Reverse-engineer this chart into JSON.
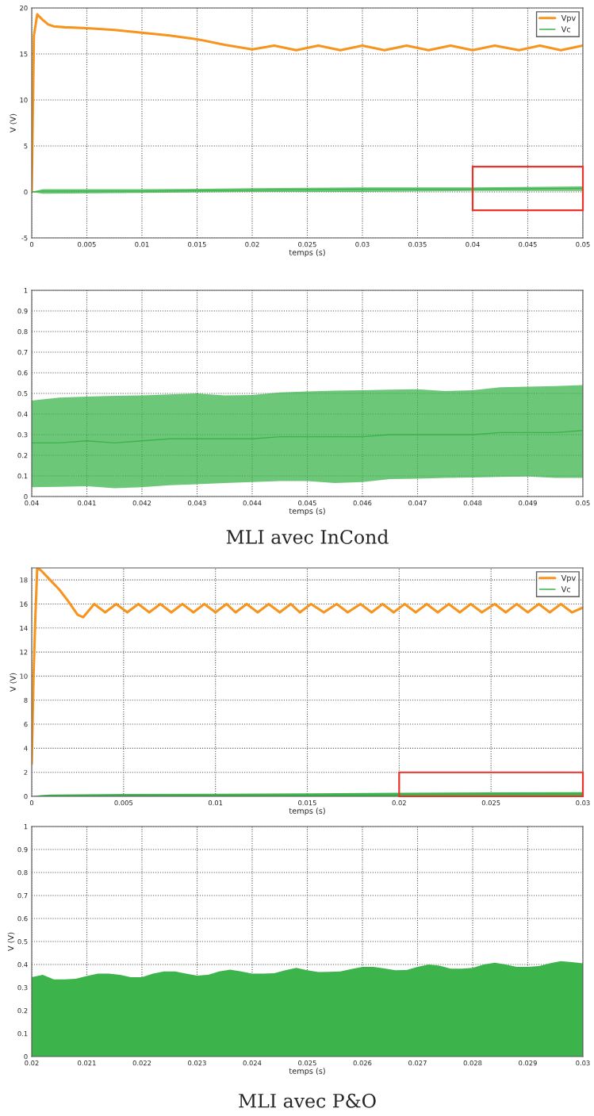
{
  "chart_data": [
    {
      "type": "line",
      "xlabel": "temps (s)",
      "ylabel": "V (V)",
      "xlim": [
        0,
        0.05
      ],
      "ylim": [
        -5,
        20
      ],
      "xticks": [
        0,
        0.005,
        0.01,
        0.015,
        0.02,
        0.025,
        0.03,
        0.035,
        0.04,
        0.045,
        0.05
      ],
      "yticks": [
        -5,
        0,
        5,
        10,
        15,
        20
      ],
      "grid": true,
      "legend": "top right",
      "line_style": "solid",
      "series": [
        {
          "name": "Vpv",
          "color": "#f7941d",
          "x": [
            0,
            0.0002,
            0.0005,
            0.001,
            0.0015,
            0.002,
            0.003,
            0.005,
            0.0075,
            0.01,
            0.0125,
            0.015,
            0.0175,
            0.02,
            0.022,
            0.024,
            0.026,
            0.028,
            0.03,
            0.032,
            0.034,
            0.036,
            0.038,
            0.04,
            0.042,
            0.0442,
            0.0461,
            0.048,
            0.05
          ],
          "values": [
            0,
            17,
            19.3,
            18.7,
            18.2,
            18.0,
            17.9,
            17.8,
            17.6,
            17.3,
            17.0,
            16.6,
            16.0,
            15.5,
            15.9,
            15.4,
            15.9,
            15.4,
            15.9,
            15.4,
            15.9,
            15.4,
            15.9,
            15.4,
            15.9,
            15.4,
            15.9,
            15.4,
            15.9
          ]
        },
        {
          "name": "Vc",
          "color": "#3cb44b",
          "x": [
            0,
            0.001,
            0.01,
            0.02,
            0.03,
            0.04,
            0.05
          ],
          "values": [
            0,
            0.1,
            0.1,
            0.2,
            0.3,
            0.3,
            0.4
          ],
          "lower": [
            0,
            -0.2,
            -0.1,
            0,
            0,
            0.1,
            0.1
          ],
          "upper": [
            0,
            0.3,
            0.3,
            0.4,
            0.5,
            0.5,
            0.6
          ]
        }
      ]
    },
    {
      "type": "line",
      "xlabel": "temps (s)",
      "xlim": [
        0.04,
        0.05
      ],
      "ylim": [
        0,
        1
      ],
      "xticks": [
        0.04,
        0.041,
        0.042,
        0.043,
        0.044,
        0.045,
        0.046,
        0.047,
        0.048,
        0.049,
        0.05
      ],
      "yticks": [
        0,
        0.1,
        0.2,
        0.3,
        0.4,
        0.5,
        0.6,
        0.7,
        0.8,
        0.9,
        1
      ],
      "grid": true,
      "annotations": [
        "MLI avec InCond"
      ],
      "series": [
        {
          "color": "#3cb44b",
          "x": [
            0.04,
            0.0405,
            0.041,
            0.0415,
            0.042,
            0.0425,
            0.043,
            0.0435,
            0.044,
            0.0445,
            0.045,
            0.0455,
            0.046,
            0.0465,
            0.047,
            0.0475,
            0.048,
            0.0485,
            0.049,
            0.0495,
            0.05
          ],
          "values": [
            0.26,
            0.26,
            0.27,
            0.26,
            0.27,
            0.28,
            0.28,
            0.28,
            0.28,
            0.29,
            0.29,
            0.29,
            0.29,
            0.3,
            0.3,
            0.3,
            0.3,
            0.31,
            0.31,
            0.31,
            0.32
          ],
          "lower": [
            0.045,
            0.047,
            0.05,
            0.04,
            0.045,
            0.055,
            0.06,
            0.065,
            0.07,
            0.075,
            0.075,
            0.065,
            0.07,
            0.085,
            0.087,
            0.09,
            0.092,
            0.095,
            0.097,
            0.09,
            0.09
          ],
          "upper": [
            0.465,
            0.48,
            0.485,
            0.488,
            0.49,
            0.495,
            0.5,
            0.49,
            0.492,
            0.505,
            0.51,
            0.513,
            0.515,
            0.518,
            0.52,
            0.512,
            0.515,
            0.53,
            0.533,
            0.536,
            0.54
          ]
        }
      ]
    },
    {
      "type": "line",
      "xlabel": "temps (s)",
      "ylabel": "V (V)",
      "xlim": [
        0,
        0.03
      ],
      "ylim": [
        0,
        19
      ],
      "xticks": [
        0,
        0.005,
        0.01,
        0.015,
        0.02,
        0.025,
        0.03
      ],
      "yticks": [
        0,
        2,
        4,
        6,
        8,
        10,
        12,
        14,
        16,
        18
      ],
      "grid": true,
      "legend": "top right",
      "line_style": "solid",
      "series": [
        {
          "name": "Vpv",
          "color": "#f7941d",
          "x": [
            0,
            0.0001,
            0.0002,
            0.0003,
            0.0005,
            0.001,
            0.0015,
            0.002,
            0.0025,
            0.0028,
            0.0034,
            0.004,
            0.0046,
            0.0052,
            0.0058,
            0.0064,
            0.007,
            0.0076,
            0.0082,
            0.0088,
            0.0094,
            0.01,
            0.0106,
            0.0111,
            0.0117,
            0.0123,
            0.0129,
            0.0135,
            0.0141,
            0.0146,
            0.0152,
            0.0159,
            0.0166,
            0.0172,
            0.0179,
            0.0185,
            0.0191,
            0.0197,
            0.0203,
            0.0209,
            0.0215,
            0.0221,
            0.0227,
            0.0233,
            0.0239,
            0.0245,
            0.0252,
            0.0258,
            0.0264,
            0.027,
            0.0276,
            0.0282,
            0.0288,
            0.0294,
            0.03
          ],
          "values": [
            2.7,
            10,
            15,
            19,
            18.8,
            18,
            17.2,
            16.2,
            15.1,
            14.9,
            16.0,
            15.3,
            16.0,
            15.3,
            16.0,
            15.3,
            16.0,
            15.3,
            16.0,
            15.3,
            16.0,
            15.3,
            16.0,
            15.3,
            16.0,
            15.3,
            16.0,
            15.3,
            16.0,
            15.3,
            16.0,
            15.3,
            16.0,
            15.3,
            16.0,
            15.3,
            16.0,
            15.3,
            16.0,
            15.3,
            16.0,
            15.3,
            16.0,
            15.3,
            16.0,
            15.3,
            16.0,
            15.3,
            16.0,
            15.3,
            16.0,
            15.3,
            16.0,
            15.3,
            15.7
          ]
        },
        {
          "name": "Vc",
          "type": "area",
          "color": "#3cb44b",
          "x": [
            0,
            0.0005,
            0.001,
            0.005,
            0.01,
            0.015,
            0.02,
            0.025,
            0.03
          ],
          "values": [
            0,
            0.1,
            0.15,
            0.2,
            0.22,
            0.25,
            0.3,
            0.33,
            0.35
          ]
        }
      ]
    },
    {
      "type": "area",
      "xlabel": "temps (s)",
      "ylabel": "V (V)",
      "xlim": [
        0.02,
        0.03
      ],
      "ylim": [
        0,
        1
      ],
      "xticks": [
        0.02,
        0.021,
        0.022,
        0.023,
        0.024,
        0.025,
        0.026,
        0.027,
        0.028,
        0.029,
        0.03
      ],
      "yticks": [
        0,
        0.1,
        0.2,
        0.3,
        0.4,
        0.5,
        0.6,
        0.7,
        0.8,
        0.9,
        1
      ],
      "grid": true,
      "annotations": [
        "MLI avec P&O"
      ],
      "series": [
        {
          "color": "#3cb44b",
          "x": [
            0.02,
            0.0202,
            0.0204,
            0.0206,
            0.0208,
            0.021,
            0.0212,
            0.0214,
            0.0216,
            0.0218,
            0.022,
            0.0222,
            0.0224,
            0.0226,
            0.0228,
            0.023,
            0.0232,
            0.0234,
            0.0236,
            0.0238,
            0.024,
            0.0242,
            0.0244,
            0.0246,
            0.0248,
            0.025,
            0.0252,
            0.0254,
            0.0256,
            0.0258,
            0.026,
            0.0262,
            0.0264,
            0.0266,
            0.0268,
            0.027,
            0.0272,
            0.0274,
            0.0276,
            0.0278,
            0.028,
            0.0282,
            0.0284,
            0.0286,
            0.0288,
            0.029,
            0.0292,
            0.0294,
            0.0296,
            0.0298,
            0.03
          ],
          "values": [
            0.345,
            0.355,
            0.335,
            0.335,
            0.338,
            0.35,
            0.36,
            0.36,
            0.355,
            0.345,
            0.345,
            0.36,
            0.37,
            0.37,
            0.36,
            0.352,
            0.355,
            0.37,
            0.378,
            0.37,
            0.36,
            0.36,
            0.362,
            0.375,
            0.385,
            0.375,
            0.367,
            0.368,
            0.37,
            0.38,
            0.39,
            0.39,
            0.383,
            0.375,
            0.376,
            0.39,
            0.4,
            0.395,
            0.382,
            0.382,
            0.385,
            0.4,
            0.408,
            0.4,
            0.39,
            0.39,
            0.393,
            0.405,
            0.415,
            0.41,
            0.405
          ]
        }
      ]
    }
  ]
}
